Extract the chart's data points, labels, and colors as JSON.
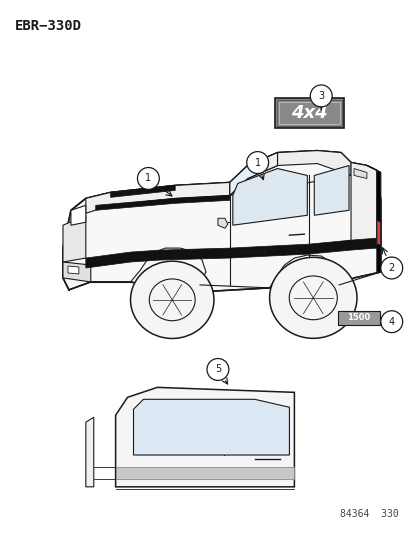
{
  "title": "EBR−330D",
  "footer": "84364  330",
  "bg_color": "#ffffff",
  "line_color": "#1a1a1a",
  "title_fontsize": 10,
  "footer_fontsize": 7,
  "callout_r": 0.018,
  "truck": {
    "stripe_color": "#111111",
    "tail_color": "#111111"
  }
}
